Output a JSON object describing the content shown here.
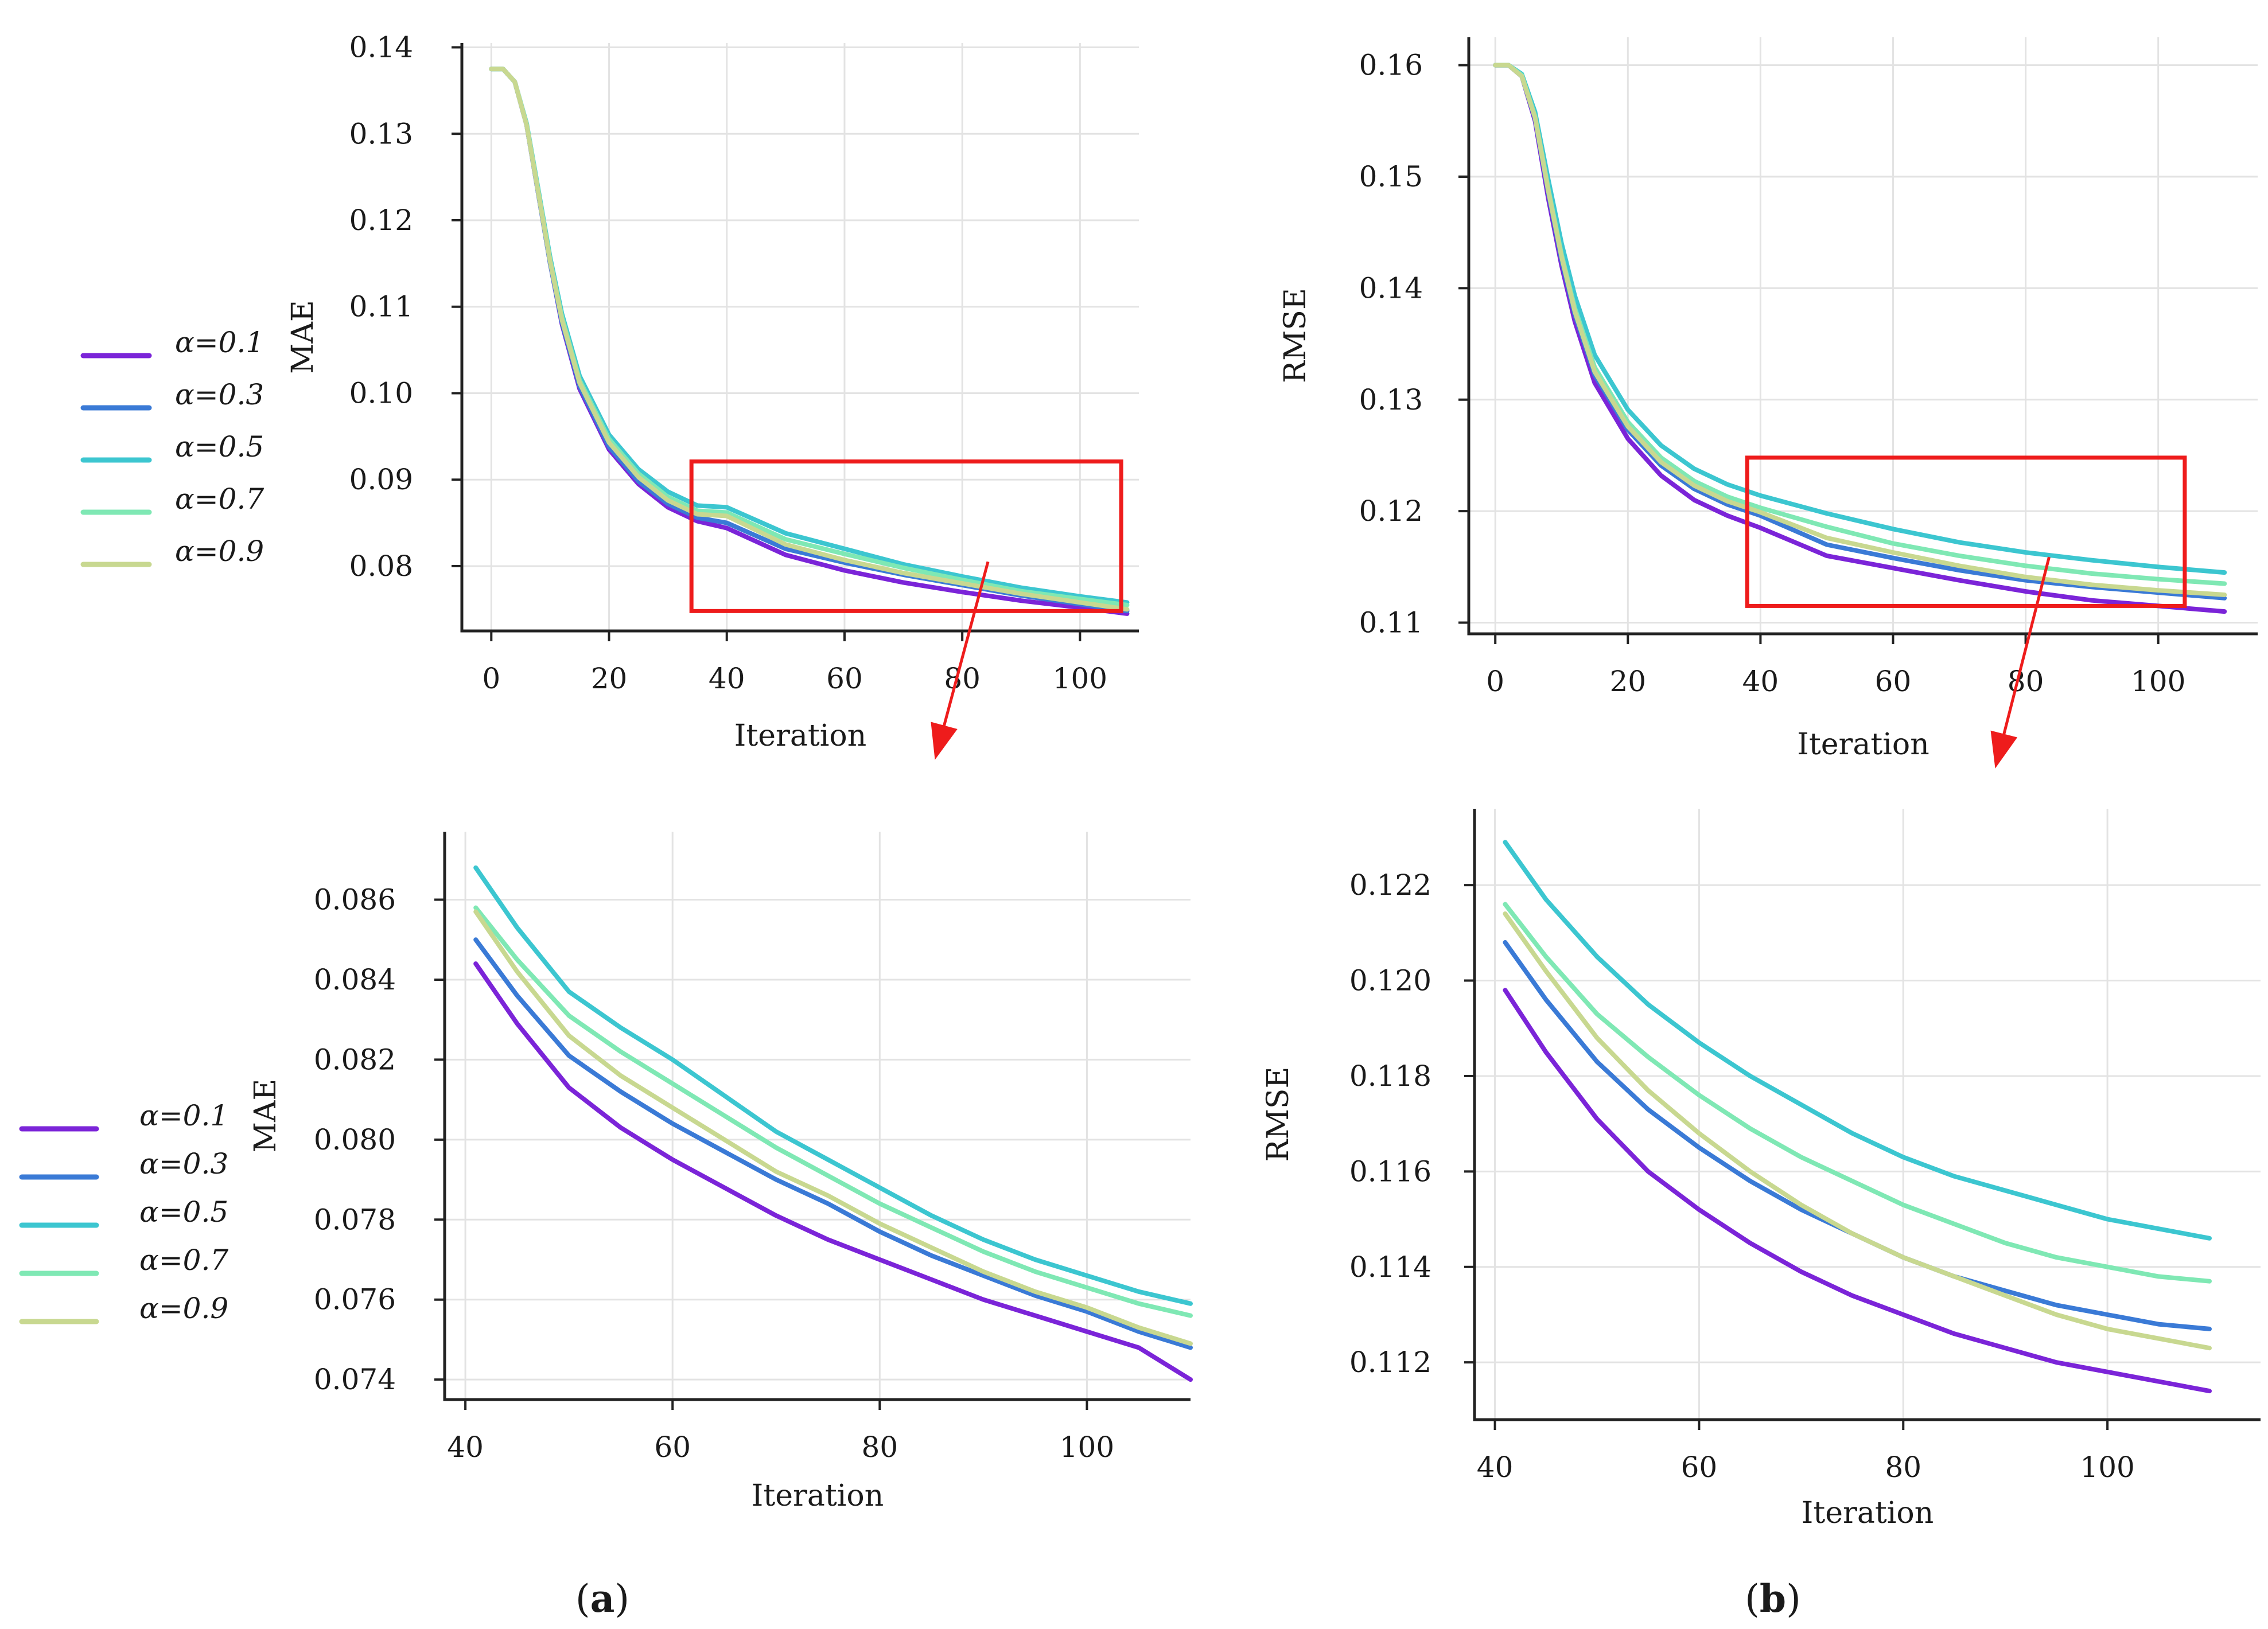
{
  "panel_labels": [
    {
      "open": "(",
      "letter": "a",
      "close": ")"
    },
    {
      "open": "(",
      "letter": "b",
      "close": ")"
    }
  ],
  "legend": {
    "labels": [
      "α=0.1",
      "α=0.3",
      "α=0.5",
      "α=0.7",
      "α=0.9"
    ],
    "colors": [
      "#7b24d8",
      "#3a7ad6",
      "#3cc6d0",
      "#7fe8b4",
      "#c8d890"
    ]
  },
  "chart_data": [
    {
      "id": "mae-full",
      "type": "line",
      "title": "",
      "xlabel": "Iteration",
      "ylabel": "MAE",
      "xlim": [
        -5,
        110
      ],
      "ylim": [
        0.0725,
        0.1405
      ],
      "xticks": [
        0,
        20,
        40,
        60,
        80,
        100
      ],
      "yticks": [
        0.08,
        0.09,
        0.1,
        0.11,
        0.12,
        0.13,
        0.14
      ],
      "ytick_labels": [
        "0.08",
        "0.09",
        "0.10",
        "0.11",
        "0.12",
        "0.13",
        "0.14"
      ],
      "grid": true,
      "legend": "left",
      "zoom_box": {
        "x": [
          34,
          107
        ],
        "y": [
          0.0748,
          0.0921
        ]
      },
      "series": [
        {
          "name": "α=0.1",
          "color": "#7b24d8",
          "x": [
            0,
            2,
            4,
            6,
            8,
            10,
            12,
            15,
            20,
            25,
            30,
            35,
            40,
            50,
            60,
            70,
            80,
            90,
            100,
            108
          ],
          "y": [
            0.1375,
            0.1375,
            0.136,
            0.131,
            0.123,
            0.115,
            0.108,
            0.1005,
            0.0935,
            0.0895,
            0.0868,
            0.0852,
            0.0844,
            0.0813,
            0.0795,
            0.0781,
            0.077,
            0.076,
            0.0752,
            0.0745
          ]
        },
        {
          "name": "α=0.3",
          "color": "#3a7ad6",
          "x": [
            0,
            2,
            4,
            6,
            8,
            10,
            12,
            15,
            20,
            25,
            30,
            35,
            40,
            50,
            60,
            70,
            80,
            90,
            100,
            108
          ],
          "y": [
            0.1375,
            0.1375,
            0.136,
            0.131,
            0.123,
            0.115,
            0.1082,
            0.1008,
            0.0938,
            0.0898,
            0.0872,
            0.0856,
            0.085,
            0.082,
            0.0804,
            0.079,
            0.0778,
            0.0766,
            0.0756,
            0.0748
          ]
        },
        {
          "name": "α=0.5",
          "color": "#3cc6d0",
          "x": [
            0,
            2,
            4,
            6,
            8,
            10,
            12,
            15,
            20,
            25,
            30,
            35,
            40,
            50,
            60,
            70,
            80,
            90,
            100,
            108
          ],
          "y": [
            0.1375,
            0.1375,
            0.136,
            0.1312,
            0.1235,
            0.1157,
            0.1092,
            0.102,
            0.0952,
            0.0912,
            0.0886,
            0.087,
            0.0868,
            0.0838,
            0.082,
            0.0802,
            0.0788,
            0.0775,
            0.0765,
            0.0758
          ]
        },
        {
          "name": "α=0.7",
          "color": "#7fe8b4",
          "x": [
            0,
            2,
            4,
            6,
            8,
            10,
            12,
            15,
            20,
            25,
            30,
            35,
            40,
            50,
            60,
            70,
            80,
            90,
            100,
            108
          ],
          "y": [
            0.1375,
            0.1375,
            0.136,
            0.1311,
            0.1233,
            0.1154,
            0.1088,
            0.1015,
            0.0947,
            0.0907,
            0.088,
            0.0864,
            0.0862,
            0.0831,
            0.0814,
            0.0798,
            0.0784,
            0.0771,
            0.0762,
            0.0755
          ]
        },
        {
          "name": "α=0.9",
          "color": "#c8d890",
          "x": [
            0,
            2,
            4,
            6,
            8,
            10,
            12,
            15,
            20,
            25,
            30,
            35,
            40,
            50,
            60,
            70,
            80,
            90,
            100,
            108
          ],
          "y": [
            0.1375,
            0.1375,
            0.136,
            0.131,
            0.1231,
            0.1152,
            0.1085,
            0.1012,
            0.0943,
            0.0903,
            0.0876,
            0.086,
            0.0858,
            0.0825,
            0.0807,
            0.0792,
            0.078,
            0.0768,
            0.0758,
            0.075
          ]
        }
      ]
    },
    {
      "id": "rmse-full",
      "type": "line",
      "title": "",
      "xlabel": "Iteration",
      "ylabel": "RMSE",
      "xlim": [
        -4,
        115
      ],
      "ylim": [
        0.109,
        0.1625
      ],
      "xticks": [
        0,
        20,
        40,
        60,
        80,
        100
      ],
      "yticks": [
        0.11,
        0.12,
        0.13,
        0.14,
        0.15,
        0.16
      ],
      "ytick_labels": [
        "0.11",
        "0.12",
        "0.13",
        "0.14",
        "0.15",
        "0.16"
      ],
      "grid": true,
      "legend": "none",
      "zoom_box": {
        "x": [
          38,
          104
        ],
        "y": [
          0.1115,
          0.1248
        ]
      },
      "series": [
        {
          "name": "α=0.1",
          "color": "#7b24d8",
          "x": [
            0,
            2,
            4,
            6,
            8,
            10,
            12,
            15,
            20,
            25,
            30,
            35,
            40,
            50,
            60,
            70,
            80,
            90,
            100,
            110
          ],
          "y": [
            0.16,
            0.16,
            0.159,
            0.155,
            0.148,
            0.142,
            0.137,
            0.1315,
            0.1265,
            0.1232,
            0.121,
            0.1196,
            0.1185,
            0.116,
            0.1149,
            0.1138,
            0.1128,
            0.112,
            0.1115,
            0.111
          ]
        },
        {
          "name": "α=0.3",
          "color": "#3a7ad6",
          "x": [
            0,
            2,
            4,
            6,
            8,
            10,
            12,
            15,
            20,
            25,
            30,
            35,
            40,
            50,
            60,
            70,
            80,
            90,
            100,
            110
          ],
          "y": [
            0.16,
            0.16,
            0.159,
            0.1552,
            0.1485,
            0.1425,
            0.1376,
            0.1322,
            0.1273,
            0.1241,
            0.122,
            0.1206,
            0.1196,
            0.117,
            0.1158,
            0.1147,
            0.1138,
            0.1132,
            0.1127,
            0.1122
          ]
        },
        {
          "name": "α=0.5",
          "color": "#3cc6d0",
          "x": [
            0,
            2,
            4,
            6,
            8,
            10,
            12,
            15,
            20,
            25,
            30,
            35,
            40,
            50,
            60,
            70,
            80,
            90,
            100,
            110
          ],
          "y": [
            0.16,
            0.16,
            0.1592,
            0.1558,
            0.1497,
            0.144,
            0.1393,
            0.134,
            0.1291,
            0.1259,
            0.1238,
            0.1224,
            0.1214,
            0.1198,
            0.1184,
            0.1172,
            0.1163,
            0.1156,
            0.115,
            0.1145
          ]
        },
        {
          "name": "α=0.7",
          "color": "#7fe8b4",
          "x": [
            0,
            2,
            4,
            6,
            8,
            10,
            12,
            15,
            20,
            25,
            30,
            35,
            40,
            50,
            60,
            70,
            80,
            90,
            100,
            110
          ],
          "y": [
            0.16,
            0.16,
            0.1591,
            0.1554,
            0.1489,
            0.143,
            0.1382,
            0.1329,
            0.128,
            0.1248,
            0.1227,
            0.1213,
            0.1203,
            0.1186,
            0.1171,
            0.116,
            0.1151,
            0.1144,
            0.1139,
            0.1135
          ]
        },
        {
          "name": "α=0.9",
          "color": "#c8d890",
          "x": [
            0,
            2,
            4,
            6,
            8,
            10,
            12,
            15,
            20,
            25,
            30,
            35,
            40,
            50,
            60,
            70,
            80,
            90,
            100,
            110
          ],
          "y": [
            0.16,
            0.16,
            0.159,
            0.1553,
            0.1487,
            0.1428,
            0.1379,
            0.1325,
            0.1276,
            0.1244,
            0.1223,
            0.1209,
            0.1199,
            0.1176,
            0.1163,
            0.1151,
            0.1141,
            0.1134,
            0.1129,
            0.1125
          ]
        }
      ]
    },
    {
      "id": "mae-zoom",
      "type": "line",
      "title": "",
      "xlabel": "Iteration",
      "ylabel": "MAE",
      "xlim": [
        38,
        110
      ],
      "ylim": [
        0.0735,
        0.0877
      ],
      "xticks": [
        40,
        60,
        80,
        100
      ],
      "yticks": [
        0.074,
        0.076,
        0.078,
        0.08,
        0.082,
        0.084,
        0.086
      ],
      "ytick_labels": [
        "0.074",
        "0.076",
        "0.078",
        "0.080",
        "0.082",
        "0.084",
        "0.086"
      ],
      "grid": true,
      "legend": "left",
      "series": [
        {
          "name": "α=0.1",
          "color": "#7b24d8",
          "x": [
            41,
            45,
            50,
            55,
            60,
            65,
            70,
            75,
            80,
            85,
            90,
            95,
            100,
            105,
            110
          ],
          "y": [
            0.0844,
            0.0829,
            0.0813,
            0.0803,
            0.0795,
            0.0788,
            0.0781,
            0.0775,
            0.077,
            0.0765,
            0.076,
            0.0756,
            0.0752,
            0.0748,
            0.074
          ]
        },
        {
          "name": "α=0.3",
          "color": "#3a7ad6",
          "x": [
            41,
            45,
            50,
            55,
            60,
            65,
            70,
            75,
            80,
            85,
            90,
            95,
            100,
            105,
            110
          ],
          "y": [
            0.085,
            0.0836,
            0.0821,
            0.0812,
            0.0804,
            0.0797,
            0.079,
            0.0784,
            0.0777,
            0.0771,
            0.0766,
            0.0761,
            0.0757,
            0.0752,
            0.0748
          ]
        },
        {
          "name": "α=0.5",
          "color": "#3cc6d0",
          "x": [
            41,
            45,
            50,
            55,
            60,
            65,
            70,
            75,
            80,
            85,
            90,
            95,
            100,
            105,
            110
          ],
          "y": [
            0.0868,
            0.0853,
            0.0837,
            0.0828,
            0.082,
            0.0811,
            0.0802,
            0.0795,
            0.0788,
            0.0781,
            0.0775,
            0.077,
            0.0766,
            0.0762,
            0.0759
          ]
        },
        {
          "name": "α=0.7",
          "color": "#7fe8b4",
          "x": [
            41,
            45,
            50,
            55,
            60,
            65,
            70,
            75,
            80,
            85,
            90,
            95,
            100,
            105,
            110
          ],
          "y": [
            0.0858,
            0.0845,
            0.0831,
            0.0822,
            0.0814,
            0.0806,
            0.0798,
            0.0791,
            0.0784,
            0.0778,
            0.0772,
            0.0767,
            0.0763,
            0.0759,
            0.0756
          ]
        },
        {
          "name": "α=0.9",
          "color": "#c8d890",
          "x": [
            41,
            45,
            50,
            55,
            60,
            65,
            70,
            75,
            80,
            85,
            90,
            95,
            100,
            105,
            110
          ],
          "y": [
            0.0857,
            0.0842,
            0.0826,
            0.0816,
            0.0808,
            0.08,
            0.0792,
            0.0786,
            0.0779,
            0.0773,
            0.0767,
            0.0762,
            0.0758,
            0.0753,
            0.0749
          ]
        }
      ]
    },
    {
      "id": "rmse-zoom",
      "type": "line",
      "title": "",
      "xlabel": "Iteration",
      "ylabel": "RMSE",
      "xlim": [
        38,
        115
      ],
      "ylim": [
        0.1108,
        0.1236
      ],
      "xticks": [
        40,
        60,
        80,
        100
      ],
      "yticks": [
        0.112,
        0.114,
        0.116,
        0.118,
        0.12,
        0.122
      ],
      "ytick_labels": [
        "0.112",
        "0.114",
        "0.116",
        "0.118",
        "0.120",
        "0.122"
      ],
      "grid": true,
      "legend": "none",
      "series": [
        {
          "name": "α=0.1",
          "color": "#7b24d8",
          "x": [
            41,
            45,
            50,
            55,
            60,
            65,
            70,
            75,
            80,
            85,
            90,
            95,
            100,
            105,
            110
          ],
          "y": [
            0.1198,
            0.1185,
            0.1171,
            0.116,
            0.1152,
            0.1145,
            0.1139,
            0.1134,
            0.113,
            0.1126,
            0.1123,
            0.112,
            0.1118,
            0.1116,
            0.1114
          ]
        },
        {
          "name": "α=0.3",
          "color": "#3a7ad6",
          "x": [
            41,
            45,
            50,
            55,
            60,
            65,
            70,
            75,
            80,
            85,
            90,
            95,
            100,
            105,
            110
          ],
          "y": [
            0.1208,
            0.1196,
            0.1183,
            0.1173,
            0.1165,
            0.1158,
            0.1152,
            0.1147,
            0.1142,
            0.1138,
            0.1135,
            0.1132,
            0.113,
            0.1128,
            0.1127
          ]
        },
        {
          "name": "α=0.5",
          "color": "#3cc6d0",
          "x": [
            41,
            45,
            50,
            55,
            60,
            65,
            70,
            75,
            80,
            85,
            90,
            95,
            100,
            105,
            110
          ],
          "y": [
            0.1229,
            0.1217,
            0.1205,
            0.1195,
            0.1187,
            0.118,
            0.1174,
            0.1168,
            0.1163,
            0.1159,
            0.1156,
            0.1153,
            0.115,
            0.1148,
            0.1146
          ]
        },
        {
          "name": "α=0.7",
          "color": "#7fe8b4",
          "x": [
            41,
            45,
            50,
            55,
            60,
            65,
            70,
            75,
            80,
            85,
            90,
            95,
            100,
            105,
            110
          ],
          "y": [
            0.1216,
            0.1205,
            0.1193,
            0.1184,
            0.1176,
            0.1169,
            0.1163,
            0.1158,
            0.1153,
            0.1149,
            0.1145,
            0.1142,
            0.114,
            0.1138,
            0.1137
          ]
        },
        {
          "name": "α=0.9",
          "color": "#c8d890",
          "x": [
            41,
            45,
            50,
            55,
            60,
            65,
            70,
            75,
            80,
            85,
            90,
            95,
            100,
            105,
            110
          ],
          "y": [
            0.1214,
            0.1202,
            0.1188,
            0.1177,
            0.1168,
            0.116,
            0.1153,
            0.1147,
            0.1142,
            0.1138,
            0.1134,
            0.113,
            0.1127,
            0.1125,
            0.1123
          ]
        }
      ]
    }
  ]
}
